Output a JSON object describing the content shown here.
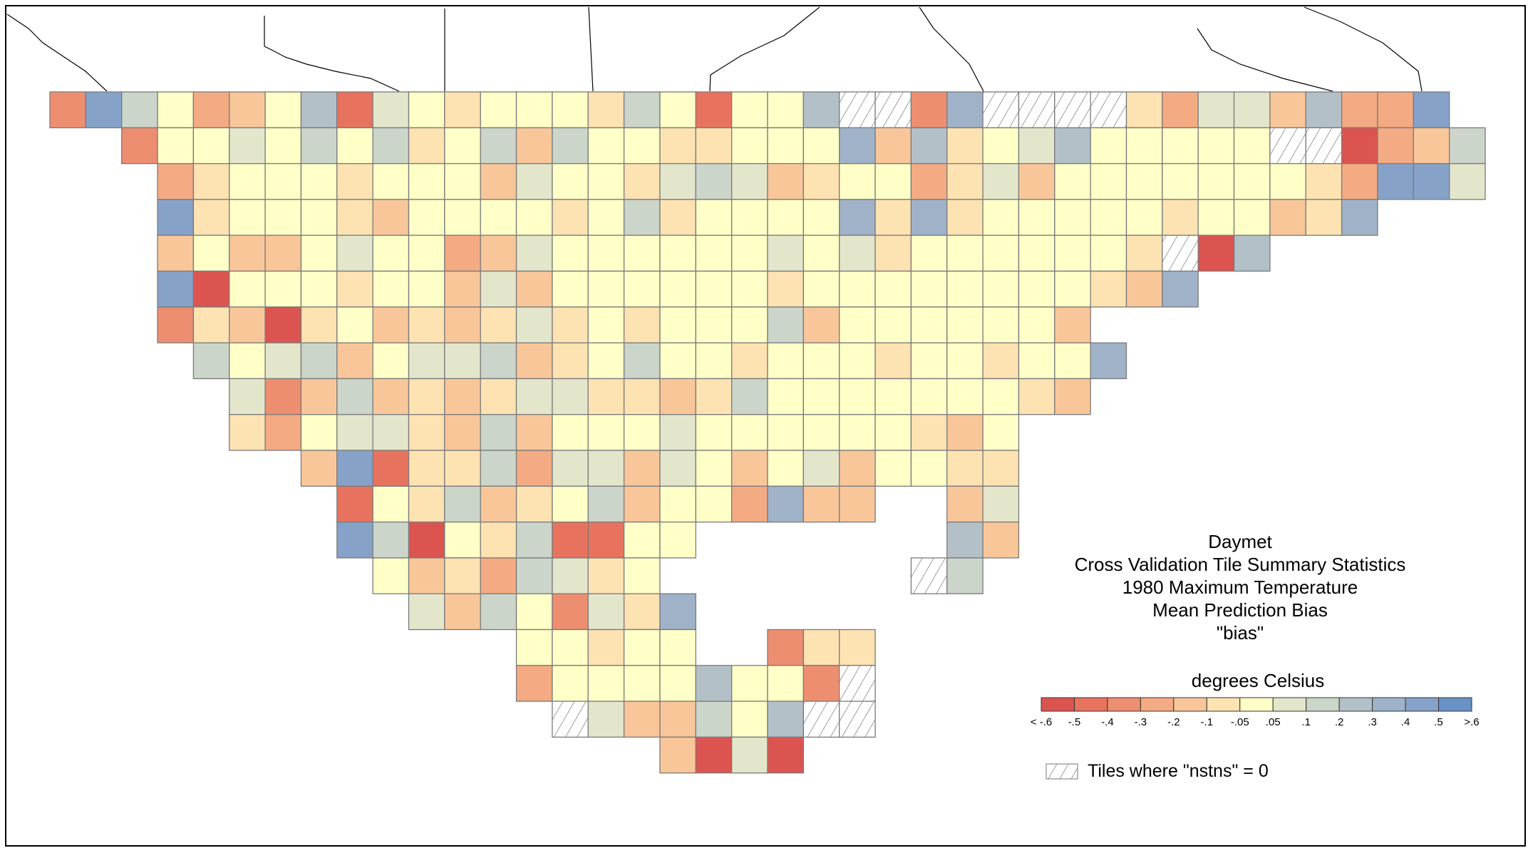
{
  "legend": {
    "title_lines": [
      "Daymet",
      "Cross Validation Tile Summary Statistics",
      "1980 Maximum Temperature",
      "Mean Prediction Bias",
      "\"bias\""
    ],
    "units": "degrees Celsius",
    "tick_labels": [
      "< -.6",
      "-.5",
      "-.4",
      "-.3",
      "-.2",
      "-.1",
      "-.05",
      ".05",
      ".1",
      ".2",
      ".3",
      ".4",
      ".5",
      ">.6"
    ],
    "class_colors": [
      "#dc5450",
      "#e7735e",
      "#ee8e70",
      "#f4aa82",
      "#f9c69a",
      "#fde2b2",
      "#ffffc8",
      "#e3e6cb",
      "#cbd5ca",
      "#b4c0c8",
      "#9fb2c8",
      "#87a2c8",
      "#6a91c6"
    ],
    "nodata_label": "Tiles where \"nstns\" = 0"
  },
  "tiles": {
    "legend_key": "a..m = bias classes from < -.6 to > .6 (legend order); '/' = nstns = 0; '.' = no tile",
    "rows": [
      "cligdegjbhgfgggfigbggj//ck////fdhhejddl.",
      "..cgghgigifgieiggffgggkejfghjggggg//adei",
      "...dfgggfgggehggfhihefggdfhegggggggfdllhg",
      "...lfgggfeggggfgifggggkfkfgggggfggefk...",
      "...egeeghggdehgggggghghfggggggf/aj......",
      "...lagggfggeheggggggfggggggggfek........",
      "...cfeafgefefhfgfgggiegggggge..........",
      "....ighieghhiefgiggfgggfggfggk..........",
      ".....hceiefefhhffefigggggggfe..........",
      ".....fdghhfeieggghggggggfeg...........",
      ".......elbffidhhehgegheggff.............",
      "........bgfiefgieggdkee..eh.............",
      "........liagfibbgg.......je.............",
      ".........gefdihfg......./i.............",
      "..........heigchfk......................",
      ".............ggfgg..cff.................",
      ".............dggggjggc/.................",
      "............../heeigj//.................",
      ".................eaha..................."
    ]
  }
}
